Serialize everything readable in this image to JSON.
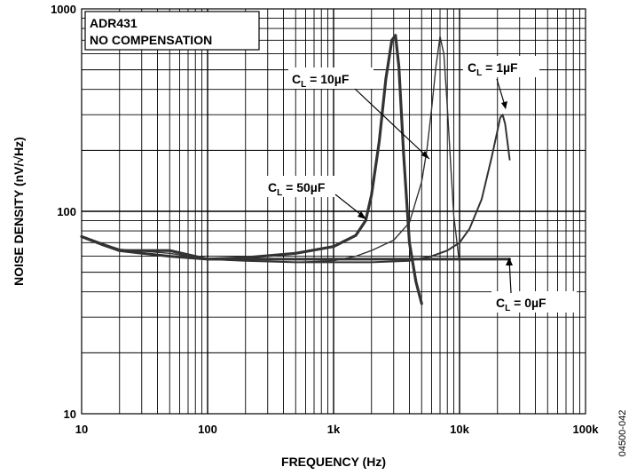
{
  "chart_data": {
    "type": "line",
    "xlabel": "FREQUENCY (Hz)",
    "ylabel": "NOISE DENSITY (nV/√Hz)",
    "x_scale": "log",
    "y_scale": "log",
    "xlim": [
      10,
      100000
    ],
    "ylim": [
      10,
      1000
    ],
    "grid": true,
    "x_tick_labels": [
      "10",
      "100",
      "1k",
      "10k",
      "100k"
    ],
    "y_tick_labels": [
      "1000",
      "100",
      "10"
    ],
    "header_box": {
      "line1": "ADR431",
      "line2": "NO COMPENSATION"
    },
    "annotations": {
      "cl_10uf": {
        "main": "C",
        "sub": "L",
        "rest": " = 10µF"
      },
      "cl_1uf": {
        "main": "C",
        "sub": "L",
        "rest": " = 1µF"
      },
      "cl_50uf": {
        "main": "C",
        "sub": "L",
        "rest": " = 50µF"
      },
      "cl_0uf": {
        "main": "C",
        "sub": "L",
        "rest": " = 0µF"
      }
    },
    "series": [
      {
        "key": "cl_0uf",
        "x": [
          10,
          15,
          20,
          30,
          50,
          70,
          100,
          200,
          500,
          1000,
          2000,
          5000,
          10000,
          25000
        ],
        "y": [
          75,
          68,
          64,
          62,
          60,
          59,
          58,
          58,
          58,
          58,
          58,
          58,
          58,
          58
        ]
      },
      {
        "key": "cl_1uf",
        "x": [
          10,
          20,
          50,
          100,
          200,
          500,
          1000,
          2000,
          4000,
          6000,
          8000,
          10000,
          12000,
          15000,
          18000,
          20000,
          21000,
          22000,
          23000,
          24000,
          25000
        ],
        "y": [
          75,
          64,
          60,
          58,
          57,
          56,
          56,
          56,
          57,
          60,
          64,
          70,
          82,
          115,
          185,
          250,
          290,
          300,
          270,
          220,
          180
        ]
      },
      {
        "key": "cl_10uf",
        "x": [
          10,
          20,
          50,
          100,
          200,
          500,
          1000,
          1500,
          2000,
          3000,
          4000,
          5000,
          5500,
          6000,
          6500,
          7000,
          7500,
          8000,
          8500,
          9000,
          10000
        ],
        "y": [
          75,
          65,
          62,
          58,
          57,
          56,
          57,
          60,
          64,
          72,
          88,
          140,
          200,
          320,
          520,
          730,
          600,
          330,
          170,
          95,
          55
        ]
      },
      {
        "key": "cl_50uf",
        "x": [
          10,
          20,
          40,
          50,
          70,
          100,
          200,
          500,
          1000,
          1500,
          1800,
          2000,
          2300,
          2600,
          2900,
          3100,
          3300,
          3600,
          4000,
          4500,
          5000
        ],
        "y": [
          75,
          64,
          64,
          64,
          61,
          58,
          59,
          62,
          67,
          76,
          90,
          120,
          220,
          450,
          700,
          740,
          520,
          190,
          70,
          45,
          35
        ]
      }
    ],
    "side_label": "04500-042"
  }
}
